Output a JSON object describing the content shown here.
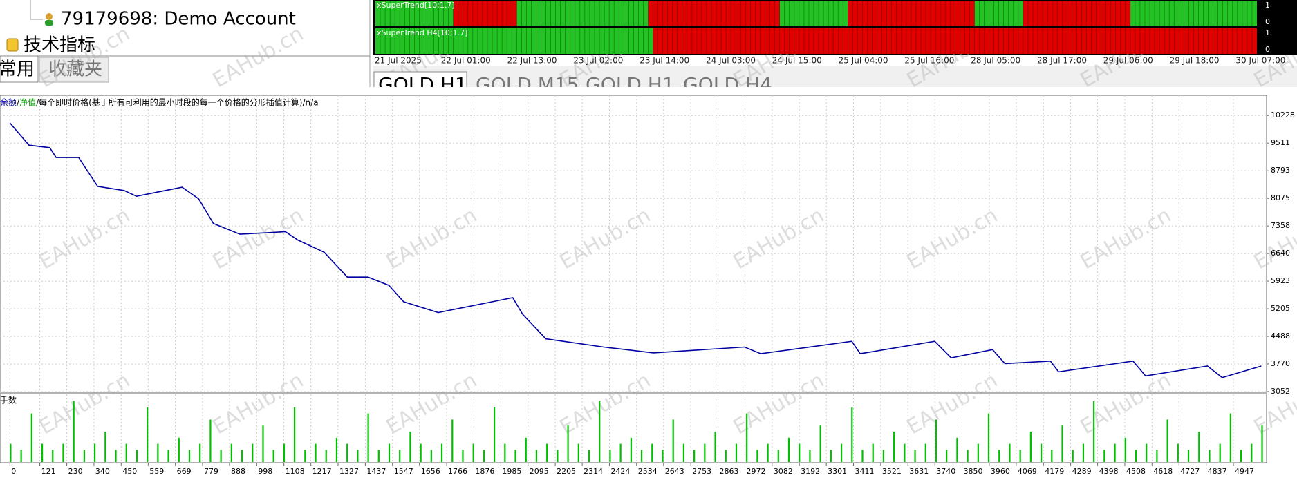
{
  "watermark": "EAHub.cn",
  "navigator": {
    "account": "79179698: Demo Account",
    "indicators": "技术指标",
    "tabs": [
      "常用",
      "收藏夹"
    ]
  },
  "chart_tabs": [
    "GOLD,H1",
    "GOLD,M15",
    "GOLD,H1",
    "GOLD,H4"
  ],
  "strips": {
    "up_color": "#22c322",
    "down_color": "#e00000",
    "yticks": [
      1,
      0
    ],
    "time_labels": [
      "21 Jul 2025",
      "22 Jul 01:00",
      "22 Jul 13:00",
      "23 Jul 02:00",
      "23 Jul 14:00",
      "24 Jul 03:00",
      "24 Jul 15:00",
      "25 Jul 04:00",
      "25 Jul 16:00",
      "28 Jul 05:00",
      "28 Jul 17:00",
      "29 Jul 06:00",
      "29 Jul 18:00",
      "30 Jul 07:00"
    ],
    "items": [
      {
        "name": "xSuperTrend[10;1.7]",
        "runs": [
          {
            "trend": "up",
            "bars": 16
          },
          {
            "trend": "down",
            "bars": 13
          },
          {
            "trend": "up",
            "bars": 27
          },
          {
            "trend": "down",
            "bars": 27
          },
          {
            "trend": "up",
            "bars": 14
          },
          {
            "trend": "down",
            "bars": 26
          },
          {
            "trend": "up",
            "bars": 10
          },
          {
            "trend": "down",
            "bars": 22
          },
          {
            "trend": "up",
            "bars": 26
          }
        ]
      },
      {
        "name": "xSuperTrend H4[10;1.7]",
        "runs": [
          {
            "trend": "up",
            "bars": 57
          },
          {
            "trend": "down",
            "bars": 124
          }
        ]
      }
    ]
  },
  "chart_data": {
    "type": "line",
    "separator": " / ",
    "model": "每个即时价格(基于所有可利用的最小时段的每一个价格的分形插值计算)",
    "note": "n/a",
    "x": [
      0,
      77,
      161,
      187,
      278,
      355,
      462,
      512,
      696,
      763,
      823,
      930,
      1114,
      1164,
      1271,
      1364,
      1448,
      1532,
      1592,
      1732,
      2033,
      2073,
      2167,
      2401,
      2602,
      2970,
      3036,
      3404,
      3438,
      3739,
      3806,
      3973,
      4023,
      4207,
      4240,
      4541,
      4592,
      4842,
      4902,
      5060
    ],
    "series": [
      {
        "name": "余额",
        "color": "#0000a0",
        "values": [
          10035,
          9457,
          9392,
          9135,
          9135,
          8385,
          8278,
          8129,
          8364,
          8064,
          7422,
          7143,
          7207,
          6993,
          6672,
          6029,
          6029,
          5815,
          5387,
          5108,
          5494,
          5065,
          4423,
          4209,
          4059,
          4209,
          4037,
          4359,
          4037,
          4359,
          3930,
          4144,
          3780,
          3845,
          3566,
          3845,
          3459,
          3716,
          3416,
          3716
        ]
      },
      {
        "name": "净值",
        "color": "#00a000"
      }
    ],
    "xlim": [
      -40,
      5070
    ],
    "ylim": [
      3052,
      10735
    ],
    "yticks": [
      10228,
      9511,
      8793,
      8075,
      7358,
      6640,
      5923,
      5205,
      4488,
      3770,
      3052
    ],
    "xticks": [
      0,
      121,
      230,
      340,
      450,
      559,
      669,
      779,
      888,
      998,
      1108,
      1217,
      1327,
      1437,
      1547,
      1656,
      1766,
      1876,
      1985,
      2095,
      2205,
      2314,
      2424,
      2534,
      2643,
      2753,
      2863,
      2972,
      3082,
      3192,
      3301,
      3411,
      3521,
      3631,
      3740,
      3850,
      3960,
      4069,
      4179,
      4289,
      4398,
      4508,
      4618,
      4727,
      4837,
      4947
    ],
    "grid": true,
    "lots": {
      "name": "手数",
      "color": "#00c000",
      "values": [
        3,
        2,
        8,
        3,
        2,
        3,
        10,
        2,
        3,
        5,
        2,
        3,
        2,
        9,
        3,
        2,
        4,
        2,
        3,
        7,
        2,
        3,
        2,
        3,
        6,
        2,
        3,
        9,
        2,
        3,
        2,
        4,
        3,
        2,
        8,
        2,
        3,
        2,
        5,
        3,
        2,
        3,
        7,
        2,
        3,
        2,
        9,
        3,
        2,
        4,
        2,
        3,
        2,
        6,
        3,
        2,
        10,
        2,
        3,
        4,
        2,
        3,
        2,
        7,
        3,
        2,
        3,
        5,
        2,
        3,
        8,
        2,
        3,
        2,
        4,
        3,
        2,
        6,
        2,
        3,
        9,
        2,
        3,
        2,
        5,
        3,
        2,
        3,
        7,
        2,
        4,
        2,
        3,
        8,
        2,
        3,
        2,
        5,
        3,
        2,
        6,
        2,
        3,
        10,
        2,
        3,
        4,
        2,
        3,
        2,
        7,
        3,
        2,
        5,
        2,
        3,
        8,
        2,
        3,
        6
      ]
    }
  }
}
